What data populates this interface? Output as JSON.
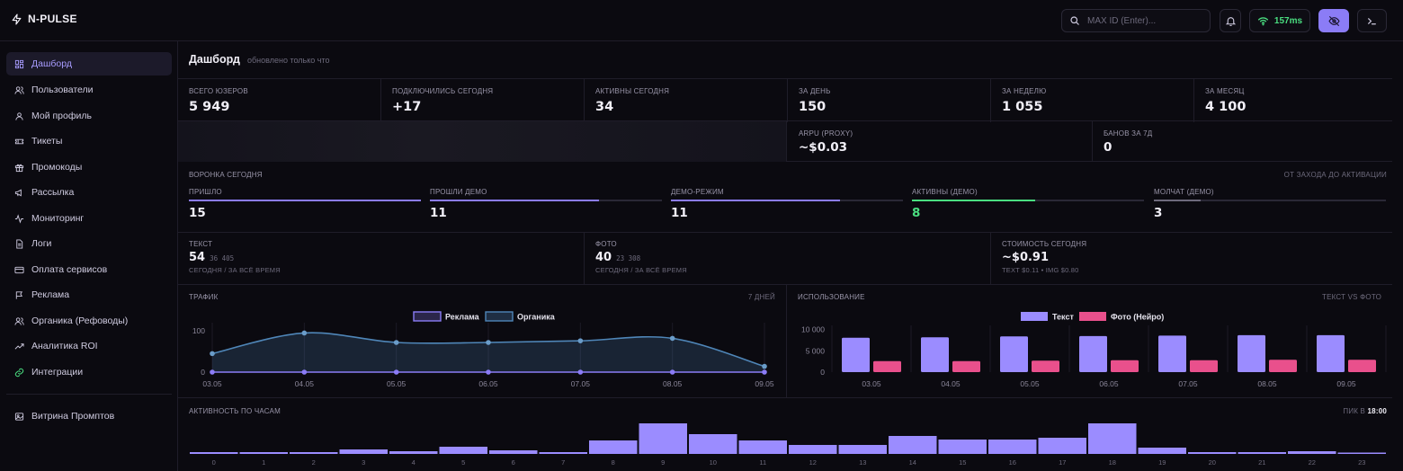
{
  "app": {
    "name": "N-PULSE"
  },
  "header": {
    "search_placeholder": "MAX ID (Enter)...",
    "ping": "157ms"
  },
  "sidebar": {
    "items": [
      {
        "label": "Дашборд",
        "icon": "dashboard-icon",
        "active": true
      },
      {
        "label": "Пользователи",
        "icon": "users-icon"
      },
      {
        "label": "Мой профиль",
        "icon": "user-icon"
      },
      {
        "label": "Тикеты",
        "icon": "ticket-icon"
      },
      {
        "label": "Промокоды",
        "icon": "gift-icon"
      },
      {
        "label": "Рассылка",
        "icon": "megaphone-icon"
      },
      {
        "label": "Мониторинг",
        "icon": "activity-icon"
      },
      {
        "label": "Логи",
        "icon": "file-icon"
      },
      {
        "label": "Оплата сервисов",
        "icon": "card-icon"
      },
      {
        "label": "Реклама",
        "icon": "flag-icon"
      },
      {
        "label": "Органика (Рефоводы)",
        "icon": "users-icon"
      },
      {
        "label": "Аналитика ROI",
        "icon": "trending-up-icon"
      },
      {
        "label": "Интеграции",
        "icon": "link-icon",
        "accent": "#4ade80"
      }
    ],
    "footer_item": {
      "label": "Витрина Промптов",
      "icon": "image-icon"
    }
  },
  "dashboard": {
    "title": "Дашборд",
    "updated": "обновлено только что",
    "stats": [
      {
        "label": "ВСЕГО ЮЗЕРОВ",
        "value": "5 949"
      },
      {
        "label": "ПОДКЛЮЧИЛИСЬ СЕГОДНЯ",
        "value": "+17"
      },
      {
        "label": "АКТИВНЫ СЕГОДНЯ",
        "value": "34"
      },
      {
        "label": "ЗА ДЕНЬ",
        "value": "150"
      },
      {
        "label": "ЗА НЕДЕЛЮ",
        "value": "1 055"
      },
      {
        "label": "ЗА МЕСЯЦ",
        "value": "4 100"
      }
    ],
    "stats2": [
      {
        "label": "ARPU (PROXY)",
        "value": "~$0.03"
      },
      {
        "label": "БАНОВ ЗА 7Д",
        "value": "0"
      }
    ],
    "funnel": {
      "title": "ВОРОНКА СЕГОДНЯ",
      "note": "ОТ ЗАХОДА ДО АКТИВАЦИИ",
      "steps": [
        {
          "label": "ПРИШЛО",
          "value": "15",
          "fraction": 1.0,
          "color": "#8b7cf6"
        },
        {
          "label": "ПРОШЛИ ДЕМО",
          "value": "11",
          "fraction": 0.73,
          "color": "#8b7cf6"
        },
        {
          "label": "ДЕМО-РЕЖИМ",
          "value": "11",
          "fraction": 0.73,
          "color": "#8b7cf6"
        },
        {
          "label": "АКТИВНЫ (ДЕМО)",
          "value": "8",
          "fraction": 0.53,
          "color": "#4ade80"
        },
        {
          "label": "МОЛЧАТ (ДЕМО)",
          "value": "3",
          "fraction": 0.2,
          "color": "#6d6a7c"
        }
      ]
    },
    "usage": [
      {
        "label": "ТЕКСТ",
        "value": "54",
        "small": "36 405",
        "sub": "СЕГОДНЯ / ЗА ВСЁ ВРЕМЯ"
      },
      {
        "label": "ФОТО",
        "value": "40",
        "small": "23 308",
        "sub": "СЕГОДНЯ / ЗА ВСЁ ВРЕМЯ"
      },
      {
        "label": "СТОИМОСТЬ СЕГОДНЯ",
        "value": "~$0.91",
        "small": "",
        "sub": "TEXT $0.11 • IMG $0.80"
      }
    ],
    "traffic_panel": {
      "title": "ТРАФИК",
      "right": "7 ДНЕЙ"
    },
    "usage_panel": {
      "title": "ИСПОЛЬЗОВАНИЕ",
      "right": "ТЕКСТ VS ФОТО"
    },
    "hours_panel": {
      "title": "АКТИВНОСТЬ ПО ЧАСАМ",
      "peak_label": "ПИК В",
      "peak_value": "18:00"
    }
  },
  "chart_data": [
    {
      "type": "area",
      "title": "ТРАФИК",
      "x": [
        "03.05",
        "04.05",
        "05.05",
        "06.05",
        "07.05",
        "08.05",
        "09.05"
      ],
      "series": [
        {
          "name": "Реклама",
          "values": [
            0,
            0,
            0,
            0,
            0,
            0,
            0
          ],
          "color": "#8b7cf6"
        },
        {
          "name": "Органика",
          "values": [
            45,
            95,
            72,
            72,
            76,
            82,
            14
          ],
          "color": "#4f86b8"
        }
      ],
      "yticks": [
        0,
        50,
        100
      ],
      "ylim": [
        0,
        120
      ],
      "legend": "top-center"
    },
    {
      "type": "bar",
      "title": "ИСПОЛЬЗОВАНИЕ",
      "categories": [
        "03.05",
        "04.05",
        "05.05",
        "06.05",
        "07.05",
        "08.05",
        "09.05"
      ],
      "series": [
        {
          "name": "Текст",
          "values": [
            8100,
            8200,
            8400,
            8500,
            8600,
            8700,
            8700
          ],
          "color": "#9b8cff"
        },
        {
          "name": "Фото (Нейро)",
          "values": [
            2600,
            2600,
            2700,
            2800,
            2800,
            2900,
            2900
          ],
          "color": "#e9508c"
        }
      ],
      "yticks": [
        0,
        5000,
        10000
      ],
      "yticklabels": [
        "0",
        "5 000",
        "10 000"
      ],
      "ylim": [
        0,
        11000
      ],
      "legend": "top-center"
    },
    {
      "type": "bar",
      "title": "АКТИВНОСТЬ ПО ЧАСАМ",
      "categories": [
        "0",
        "1",
        "2",
        "3",
        "4",
        "5",
        "6",
        "7",
        "8",
        "9",
        "10",
        "11",
        "12",
        "13",
        "14",
        "15",
        "16",
        "17",
        "18",
        "19",
        "20",
        "21",
        "22",
        "23"
      ],
      "values": [
        2,
        2,
        2,
        5,
        3,
        8,
        4,
        2,
        15,
        34,
        22,
        15,
        10,
        10,
        20,
        16,
        16,
        18,
        34,
        7,
        2,
        2,
        3,
        1
      ],
      "color": "#9b8cff"
    }
  ]
}
